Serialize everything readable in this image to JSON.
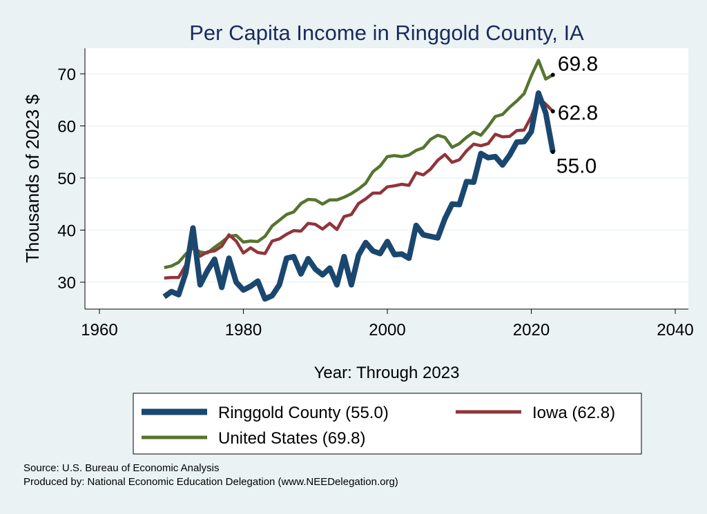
{
  "chart_data": {
    "type": "line",
    "title": "Per Capita Income in Ringgold County, IA",
    "xlabel": "Year: Through 2023",
    "ylabel": "Thousands of 2023 $",
    "xlim": [
      1960,
      2040
    ],
    "ylim": [
      25,
      75
    ],
    "xticks": [
      1960,
      1980,
      2000,
      2020,
      2040
    ],
    "yticks": [
      30,
      40,
      50,
      60,
      70
    ],
    "grid": true,
    "legend_position": "bottom",
    "x": [
      1969,
      1970,
      1971,
      1972,
      1973,
      1974,
      1975,
      1976,
      1977,
      1978,
      1979,
      1980,
      1981,
      1982,
      1983,
      1984,
      1985,
      1986,
      1987,
      1988,
      1989,
      1990,
      1991,
      1992,
      1993,
      1994,
      1995,
      1996,
      1997,
      1998,
      1999,
      2000,
      2001,
      2002,
      2003,
      2004,
      2005,
      2006,
      2007,
      2008,
      2009,
      2010,
      2011,
      2012,
      2013,
      2014,
      2015,
      2016,
      2017,
      2018,
      2019,
      2020,
      2021,
      2022,
      2023
    ],
    "series": [
      {
        "name": "Ringgold County (55.0)",
        "color": "#1a476f",
        "end_label": "55.0",
        "values": [
          27.2,
          28.2,
          27.6,
          31.8,
          40.4,
          29.5,
          32.2,
          34.4,
          29.0,
          34.6,
          30.0,
          28.5,
          29.2,
          30.2,
          26.8,
          27.4,
          29.5,
          34.6,
          34.9,
          31.6,
          34.5,
          32.5,
          31.4,
          32.7,
          29.5,
          34.9,
          29.5,
          35.2,
          37.6,
          36.0,
          35.5,
          37.8,
          35.3,
          35.4,
          34.6,
          40.9,
          39.1,
          38.8,
          38.5,
          42.2,
          45.0,
          44.9,
          49.3,
          49.2,
          54.7,
          53.9,
          54.1,
          52.5,
          54.4,
          56.9,
          57.0,
          58.9,
          66.3,
          62.5,
          55.0
        ]
      },
      {
        "name": "Iowa (62.8)",
        "color": "#90353b",
        "end_label": "62.8",
        "values": [
          30.8,
          30.9,
          30.9,
          33.3,
          37.5,
          35.0,
          35.8,
          36.0,
          36.9,
          39.1,
          37.9,
          35.6,
          36.6,
          35.7,
          35.5,
          37.9,
          38.3,
          39.2,
          39.9,
          39.8,
          41.3,
          41.1,
          40.2,
          41.3,
          40.1,
          42.6,
          43.0,
          45.1,
          46.0,
          47.1,
          47.1,
          48.3,
          48.5,
          48.8,
          48.6,
          51.0,
          50.6,
          51.7,
          53.4,
          54.5,
          53.0,
          53.5,
          55.2,
          56.5,
          56.2,
          56.6,
          58.4,
          57.9,
          58.0,
          59.1,
          59.2,
          61.8,
          65.4,
          64.2,
          62.8
        ]
      },
      {
        "name": "United States (69.8)",
        "color": "#55752f",
        "end_label": "69.8",
        "values": [
          32.8,
          33.1,
          33.8,
          35.4,
          36.6,
          35.8,
          35.6,
          36.7,
          37.7,
          38.8,
          39.0,
          37.7,
          37.9,
          37.8,
          38.8,
          40.8,
          41.9,
          43.0,
          43.5,
          45.1,
          45.9,
          45.8,
          45.0,
          45.8,
          45.8,
          46.3,
          47.0,
          47.9,
          49.0,
          51.2,
          52.3,
          54.1,
          54.3,
          54.1,
          54.4,
          55.3,
          55.8,
          57.4,
          58.2,
          57.8,
          55.9,
          56.6,
          57.8,
          58.8,
          58.2,
          59.9,
          61.8,
          62.2,
          63.6,
          64.8,
          66.2,
          69.6,
          72.6,
          69.0,
          69.8
        ]
      }
    ]
  },
  "footer": {
    "source": "Source: U.S. Bureau of Economic Analysis",
    "produced": "Produced by: National Economic Education Delegation (www.NEEDelegation.org)"
  }
}
